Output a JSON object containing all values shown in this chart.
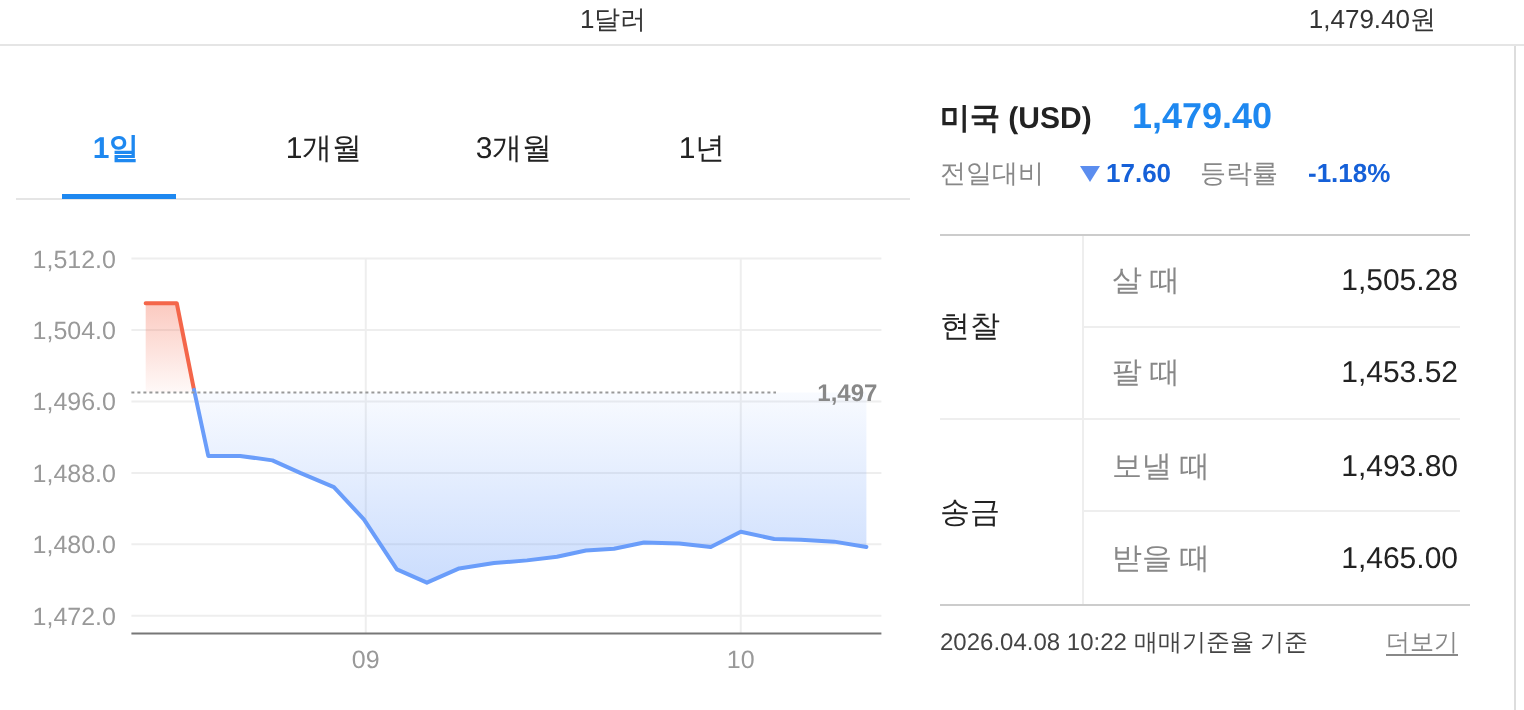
{
  "chart_data": [
    {
      "type": "other",
      "annotations": [
        "1달러",
        "1,479.40원"
      ]
    },
    {
      "type": "other",
      "annotations": [
        "1일",
        "1개월",
        "3개월",
        "1년"
      ]
    },
    {
      "type": "line",
      "xlim": [
        8.375,
        10.375
      ],
      "ylim": [
        1470,
        1512
      ],
      "xticks": [
        {
          "value": 9,
          "label": "09"
        },
        {
          "value": 10,
          "label": "10"
        }
      ],
      "yticks": [
        {
          "value": 1472,
          "label": "1,472.0"
        },
        {
          "value": 1480,
          "label": "1,480.0"
        },
        {
          "value": 1488,
          "label": "1,488.0"
        },
        {
          "value": 1496,
          "label": "1,496.0"
        },
        {
          "value": 1504,
          "label": "1,504.0"
        },
        {
          "value": 1512,
          "label": "1,512.0"
        }
      ],
      "grid": true,
      "series": [
        {
          "color": "#f4664a",
          "x": [
            8.413,
            8.496,
            8.542
          ],
          "values": [
            1507.0,
            1507.0,
            1497.3
          ],
          "lower": [
            1497,
            1497,
            1497
          ],
          "upper": [
            1507.0,
            1507.0,
            1497.3
          ]
        },
        {
          "color": "#6a9dfa",
          "x": [
            8.542,
            8.58,
            8.665,
            8.751,
            8.825,
            8.915,
            8.995,
            9.083,
            9.163,
            9.249,
            9.342,
            9.43,
            9.51,
            9.587,
            9.662,
            9.742,
            9.836,
            9.92,
            10.0,
            10.089,
            10.16,
            10.249,
            10.335
          ],
          "values": [
            1497.3,
            1489.9,
            1489.9,
            1489.4,
            1488.0,
            1486.4,
            1482.8,
            1477.2,
            1475.7,
            1477.3,
            1477.9,
            1478.2,
            1478.6,
            1479.3,
            1479.5,
            1480.2,
            1480.1,
            1479.7,
            1481.4,
            1480.6,
            1480.5,
            1480.3,
            1479.7
          ],
          "lower": [
            1497.3,
            1489.9,
            1489.9,
            1489.4,
            1488.0,
            1486.4,
            1482.8,
            1477.2,
            1475.7,
            1477.3,
            1477.9,
            1478.2,
            1478.6,
            1479.3,
            1479.5,
            1480.2,
            1480.1,
            1479.7,
            1481.4,
            1480.6,
            1480.5,
            1480.3,
            1479.7
          ],
          "upper": [
            1497,
            1497,
            1497,
            1497,
            1497,
            1497,
            1497,
            1497,
            1497,
            1497,
            1497,
            1497,
            1497,
            1497,
            1497,
            1497,
            1497,
            1497,
            1497,
            1497,
            1497,
            1497,
            1497
          ]
        }
      ],
      "ref_lines": [
        {
          "axis": "y",
          "value": 1497,
          "label": "1,497",
          "color": "#999999",
          "line_style": "dotted"
        }
      ]
    },
    {
      "type": "other",
      "annotations": [
        "미국 (USD)",
        "1,479.40",
        "전일대비",
        "17.60",
        "등락률",
        "-1.18%",
        "현찰",
        "살 때",
        "1,505.28",
        "팔 때",
        "1,453.52",
        "송금",
        "보낼 때",
        "1,493.80",
        "받을 때",
        "1,465.00",
        "2026.04.08 10:22 매매기준율 기준",
        "더보기"
      ]
    }
  ]
}
